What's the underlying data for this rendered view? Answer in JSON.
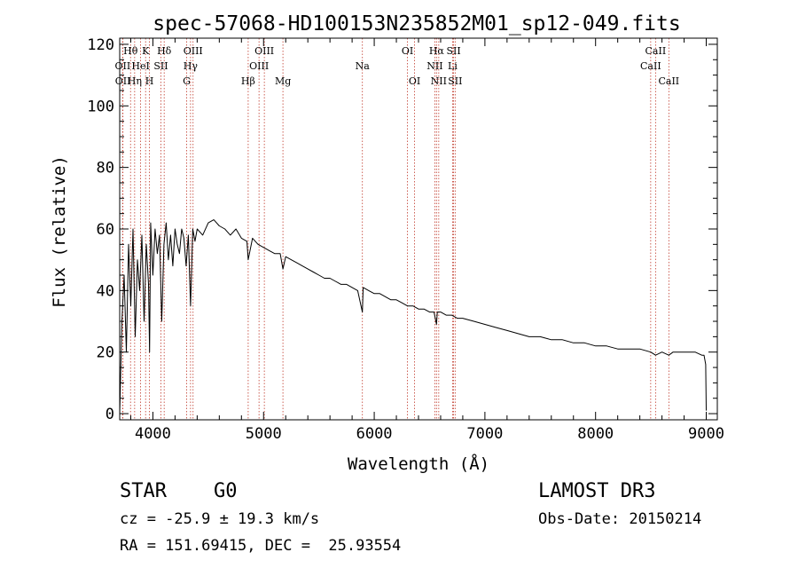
{
  "chart_data": {
    "type": "line",
    "title": "spec-57068-HD100153N235852M01_sp12-049.fits",
    "xlabel": "Wavelength (Å)",
    "ylabel": "Flux (relative)",
    "xlim": [
      3700,
      9100
    ],
    "ylim": [
      -2,
      122
    ],
    "xticks": [
      4000,
      5000,
      6000,
      7000,
      8000,
      9000
    ],
    "yticks": [
      0,
      20,
      40,
      60,
      80,
      100,
      120
    ],
    "grid": false,
    "series": [
      {
        "name": "flux",
        "x": [
          3700,
          3720,
          3740,
          3760,
          3780,
          3800,
          3820,
          3840,
          3860,
          3880,
          3900,
          3920,
          3940,
          3960,
          3970,
          3980,
          4000,
          4020,
          4040,
          4060,
          4080,
          4100,
          4120,
          4140,
          4160,
          4180,
          4200,
          4220,
          4240,
          4260,
          4280,
          4300,
          4320,
          4340,
          4360,
          4380,
          4400,
          4450,
          4500,
          4550,
          4600,
          4650,
          4700,
          4750,
          4800,
          4850,
          4861,
          4900,
          4950,
          5000,
          5050,
          5100,
          5150,
          5175,
          5200,
          5250,
          5300,
          5350,
          5400,
          5450,
          5500,
          5550,
          5600,
          5650,
          5700,
          5750,
          5800,
          5850,
          5893,
          5900,
          5950,
          6000,
          6050,
          6100,
          6150,
          6200,
          6250,
          6300,
          6350,
          6400,
          6450,
          6500,
          6540,
          6563,
          6570,
          6600,
          6650,
          6700,
          6750,
          6800,
          6900,
          7000,
          7100,
          7200,
          7300,
          7400,
          7500,
          7600,
          7700,
          7800,
          7900,
          8000,
          8100,
          8200,
          8300,
          8400,
          8498,
          8542,
          8600,
          8662,
          8700,
          8800,
          8900,
          8960,
          8980,
          8995,
          9000
        ],
        "values": [
          0,
          30,
          45,
          20,
          55,
          35,
          60,
          25,
          50,
          40,
          58,
          30,
          55,
          42,
          20,
          62,
          45,
          60,
          52,
          58,
          30,
          55,
          62,
          50,
          58,
          48,
          60,
          55,
          52,
          60,
          57,
          48,
          58,
          35,
          60,
          56,
          60,
          58,
          62,
          63,
          61,
          60,
          58,
          60,
          57,
          56,
          50,
          57,
          55,
          54,
          53,
          52,
          52,
          47,
          51,
          50,
          49,
          48,
          47,
          46,
          45,
          44,
          44,
          43,
          42,
          42,
          41,
          40,
          33,
          41,
          40,
          39,
          39,
          38,
          37,
          37,
          36,
          35,
          35,
          34,
          34,
          33,
          33,
          29,
          33,
          33,
          32,
          32,
          31,
          31,
          30,
          29,
          28,
          27,
          26,
          25,
          25,
          24,
          24,
          23,
          23,
          22,
          22,
          21,
          21,
          21,
          20,
          19,
          20,
          19,
          20,
          20,
          20,
          19,
          19,
          16,
          1
        ]
      }
    ],
    "lines": [
      {
        "label": "Hθ",
        "wave": 3798,
        "row": 0
      },
      {
        "label": "OII",
        "wave": 3727,
        "row": 1
      },
      {
        "label": "OII",
        "wave": 3729,
        "row": 2
      },
      {
        "label": "K",
        "wave": 3934,
        "row": 0
      },
      {
        "label": "Hη",
        "wave": 3835,
        "row": 2
      },
      {
        "label": "HeI",
        "wave": 3889,
        "row": 1
      },
      {
        "label": "H",
        "wave": 3969,
        "row": 2
      },
      {
        "label": "Hδ",
        "wave": 4102,
        "row": 0
      },
      {
        "label": "SII",
        "wave": 4072,
        "row": 1
      },
      {
        "label": "OIII",
        "wave": 4363,
        "row": 0
      },
      {
        "label": "Hγ",
        "wave": 4340,
        "row": 1
      },
      {
        "label": "G",
        "wave": 4305,
        "row": 2
      },
      {
        "label": "Hβ",
        "wave": 4861,
        "row": 2
      },
      {
        "label": "OIII",
        "wave": 5007,
        "row": 0
      },
      {
        "label": "OIII",
        "wave": 4959,
        "row": 1
      },
      {
        "label": "Mg",
        "wave": 5175,
        "row": 2
      },
      {
        "label": "Na",
        "wave": 5893,
        "row": 1
      },
      {
        "label": "OI",
        "wave": 6300,
        "row": 0
      },
      {
        "label": "OI",
        "wave": 6364,
        "row": 2
      },
      {
        "label": "Hα",
        "wave": 6563,
        "row": 0
      },
      {
        "label": "NII",
        "wave": 6548,
        "row": 1
      },
      {
        "label": "NII",
        "wave": 6583,
        "row": 2
      },
      {
        "label": "SII",
        "wave": 6717,
        "row": 0
      },
      {
        "label": "Li",
        "wave": 6708,
        "row": 1
      },
      {
        "label": "SII",
        "wave": 6731,
        "row": 2
      },
      {
        "label": "CaII",
        "wave": 8542,
        "row": 0
      },
      {
        "label": "CaII",
        "wave": 8498,
        "row": 1
      },
      {
        "label": "CaII",
        "wave": 8662,
        "row": 2
      }
    ]
  },
  "info": {
    "class_label": "STAR",
    "subclass": "G0",
    "survey": "LAMOST DR3",
    "cz": "cz = -25.9 ± 19.3 km/s",
    "obs_date": "Obs-Date: 20150214",
    "coords": "RA = 151.69415, DEC =  25.93554"
  },
  "colors": {
    "line": "#000000",
    "marker": "#c0392b",
    "axis": "#000000"
  }
}
